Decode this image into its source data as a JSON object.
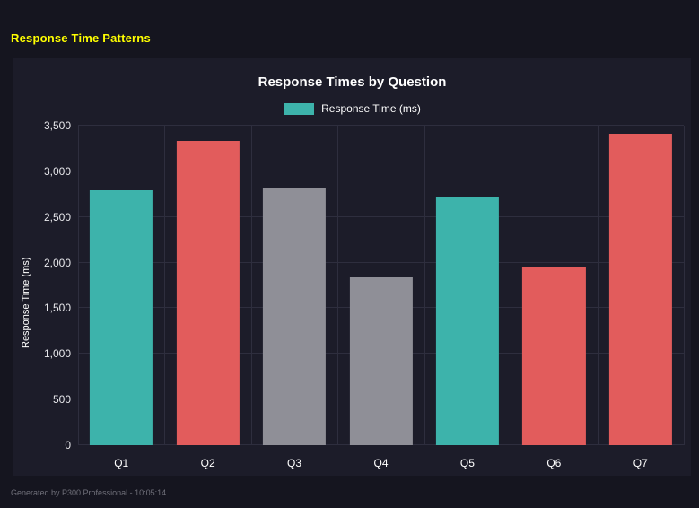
{
  "page": {
    "title": "Response Time Patterns",
    "footer": "Generated by P300 Professional - 10:05:14"
  },
  "colors": {
    "accent_yellow": "#ffff00",
    "teal": "#3db3ab",
    "red": "#e25c5c",
    "gray": "#8f8f97",
    "background": "#15151f",
    "panel": "#1c1c29",
    "grid": "#2e2e3e"
  },
  "chart_data": {
    "type": "bar",
    "title": "Response Times by Question",
    "legend": [
      {
        "label": "Response Time (ms)",
        "color": "#3db3ab"
      }
    ],
    "legend_position": "top",
    "categories": [
      "Q1",
      "Q2",
      "Q3",
      "Q4",
      "Q5",
      "Q6",
      "Q7"
    ],
    "series": [
      {
        "name": "Response Time (ms)",
        "values": [
          2790,
          3330,
          2810,
          1840,
          2720,
          1960,
          3410
        ]
      }
    ],
    "bar_colors": [
      "#3db3ab",
      "#e25c5c",
      "#8f8f97",
      "#8f8f97",
      "#3db3ab",
      "#e25c5c",
      "#e25c5c"
    ],
    "xlabel": "",
    "ylabel": "Response Time (ms)",
    "ylim": [
      0,
      3500
    ],
    "ytick_step": 500,
    "ytick_labels": [
      "0",
      "500",
      "1,000",
      "1,500",
      "2,000",
      "2,500",
      "3,000",
      "3,500"
    ],
    "grid": true
  }
}
